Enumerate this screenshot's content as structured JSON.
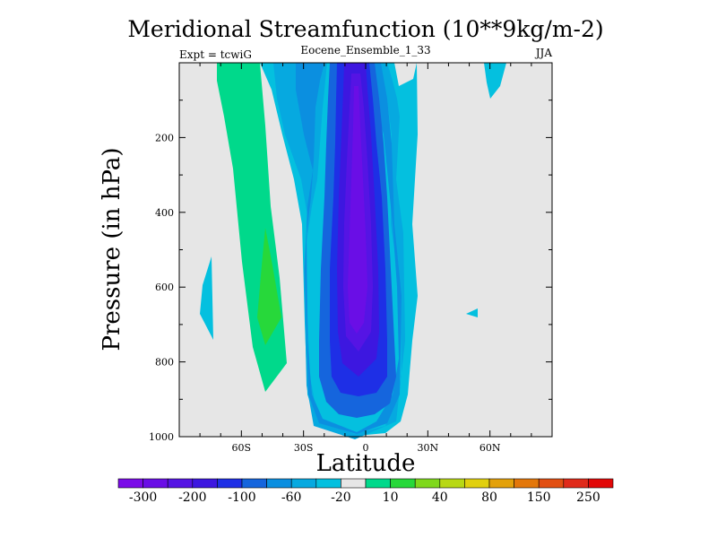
{
  "chart_data": {
    "type": "contour",
    "title": "Meridional Streamfunction (10**9kg/m-2)",
    "subtitle_left": "Expt = tcwiG",
    "subtitle_center": "Eocene_Ensemble_1_33",
    "subtitle_right": "JJA",
    "xlabel": "Latitude",
    "ylabel": "Pressure (in hPa)",
    "xlim": [
      -90,
      90
    ],
    "ylim": [
      1000,
      0
    ],
    "x_ticks": [
      {
        "value": -60,
        "label": "60S"
      },
      {
        "value": -30,
        "label": "30S"
      },
      {
        "value": 0,
        "label": "0"
      },
      {
        "value": 30,
        "label": "30N"
      },
      {
        "value": 60,
        "label": "60N"
      }
    ],
    "y_ticks": [
      {
        "value": 200,
        "label": "200"
      },
      {
        "value": 400,
        "label": "400"
      },
      {
        "value": 600,
        "label": "600"
      },
      {
        "value": 800,
        "label": "800"
      },
      {
        "value": 1000,
        "label": "1000"
      }
    ],
    "background_color": "#e6e6e6",
    "colorbar": {
      "colors": [
        "#7b0ce8",
        "#6a0ee6",
        "#5514e4",
        "#3d17e0",
        "#1e2fe6",
        "#1565dd",
        "#0b8fe0",
        "#06a9e0",
        "#04c0df",
        "#e6e6e6",
        "#00d98b",
        "#27d83a",
        "#7fd81c",
        "#b8d815",
        "#e1d00e",
        "#e3a10b",
        "#e3770a",
        "#e24f12",
        "#e02a1a",
        "#e20808"
      ],
      "labels": [
        "-300",
        "-200",
        "-100",
        "-60",
        "-20",
        "10",
        "40",
        "80",
        "150",
        "250"
      ]
    },
    "features": [
      {
        "name": "central-negative-cell",
        "center_lat": 0,
        "center_pressure": 600,
        "min_value": -300,
        "lat_extent": [
          -15,
          15
        ],
        "pressure_extent": [
          0,
          990
        ]
      },
      {
        "name": "southern-positive-band",
        "center_lat": -45,
        "center_pressure": 650,
        "max_value": 40,
        "lat_extent": [
          -60,
          -35
        ],
        "pressure_extent": [
          0,
          880
        ]
      }
    ]
  }
}
